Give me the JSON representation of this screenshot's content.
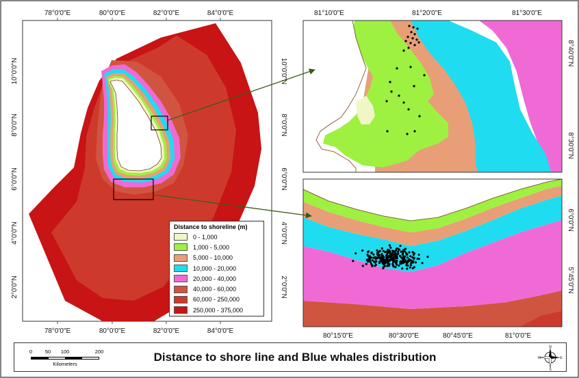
{
  "map": {
    "main_x_ticks": [
      "78°0'0\"E",
      "80°0'0\"E",
      "82°0'0\"E",
      "84°0'0\"E"
    ],
    "main_y_ticks": [
      "10°0'0\"N",
      "8°0'0\"N",
      "6°0'0\"N",
      "4°0'0\"N",
      "2°0'0\"N"
    ],
    "inset_top_x_ticks": [
      "81°10'0\"E",
      "81°20'0\"E",
      "81°30'0\"E"
    ],
    "inset_top_y_ticks": [
      "8°40'0\"N",
      "8°30'0\"N"
    ],
    "inset_bottom_x_ticks": [
      "80°15'0\"E",
      "80°30'0\"E",
      "80°45'0\"E",
      "81°0'0\"E"
    ],
    "inset_bottom_y_ticks": [
      "6°0'0\"N",
      "5°45'0\"N"
    ]
  },
  "legend": {
    "title": "Distance to shoreline (m)",
    "classes": [
      {
        "label": "0 - 1,000",
        "color": "#f0f6c6"
      },
      {
        "label": "1,000 - 5,000",
        "color": "#9ef041"
      },
      {
        "label": "5,000 - 10,000",
        "color": "#e89f77"
      },
      {
        "label": "10,000 - 20,000",
        "color": "#1fdcf0"
      },
      {
        "label": "20,000 - 40,000",
        "color": "#f06ad6"
      },
      {
        "label": "40,000 - 60,000",
        "color": "#d05540"
      },
      {
        "label": "60,000 - 250,000",
        "color": "#cd3a2b"
      },
      {
        "label": "250,000 - 375,000",
        "color": "#c81414"
      }
    ]
  },
  "footer": {
    "title": "Distance to shore line and Blue whales distribution",
    "scale_labels": [
      "0",
      "50",
      "100",
      "200"
    ],
    "scale_unit": "Kilometers",
    "compass": {
      "n": "N",
      "s": "S",
      "e": "E",
      "w": "W"
    }
  }
}
